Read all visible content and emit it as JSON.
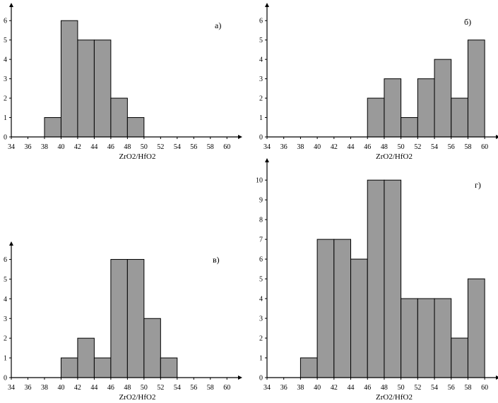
{
  "chart_data": [
    {
      "type": "bar",
      "panel_label": "а)",
      "xlabel": "ZrO2/HfO2",
      "ylabel": "",
      "bin_edges": [
        38,
        40,
        42,
        44,
        46,
        48,
        50
      ],
      "values": [
        1,
        6,
        5,
        5,
        2,
        1
      ],
      "xticks": [
        34,
        36,
        38,
        40,
        42,
        44,
        46,
        48,
        50,
        52,
        54,
        56,
        58,
        60
      ],
      "yticks": [
        0,
        1,
        2,
        3,
        4,
        5,
        6
      ],
      "xlim": [
        34,
        61
      ],
      "ylim": [
        0,
        6.7
      ],
      "grid": false
    },
    {
      "type": "bar",
      "panel_label": "б)",
      "xlabel": "ZrO2/HfO2",
      "ylabel": "",
      "bin_edges": [
        46,
        48,
        50,
        52,
        54,
        56,
        58,
        60
      ],
      "values": [
        2,
        3,
        1,
        3,
        4,
        2,
        5
      ],
      "xticks": [
        34,
        36,
        38,
        40,
        42,
        44,
        46,
        48,
        50,
        52,
        54,
        56,
        58,
        60
      ],
      "yticks": [
        0,
        1,
        2,
        3,
        4,
        5,
        6
      ],
      "xlim": [
        34,
        61
      ],
      "ylim": [
        0,
        6.7
      ],
      "grid": false
    },
    {
      "type": "bar",
      "panel_label": "в)",
      "xlabel": "ZrO2/HfO2",
      "ylabel": "",
      "bin_edges": [
        40,
        42,
        44,
        46,
        48,
        50,
        52,
        54
      ],
      "values": [
        1,
        2,
        1,
        6,
        6,
        3,
        1
      ],
      "xticks": [
        34,
        36,
        38,
        40,
        42,
        44,
        46,
        48,
        50,
        52,
        54,
        56,
        58,
        60
      ],
      "yticks": [
        0,
        1,
        2,
        3,
        4,
        5,
        6
      ],
      "xlim": [
        34,
        61
      ],
      "ylim": [
        0,
        6.7
      ],
      "grid": false
    },
    {
      "type": "bar",
      "panel_label": "г)",
      "xlabel": "ZrO2/HfO2",
      "ylabel": "",
      "bin_edges": [
        38,
        40,
        42,
        44,
        46,
        48,
        50,
        52,
        54,
        56,
        58,
        60
      ],
      "values": [
        1,
        7,
        7,
        6,
        10,
        10,
        4,
        4,
        4,
        2,
        5
      ],
      "xticks": [
        34,
        36,
        38,
        40,
        42,
        44,
        46,
        48,
        50,
        52,
        54,
        56,
        58,
        60
      ],
      "yticks": [
        0,
        1,
        2,
        3,
        4,
        5,
        6,
        7,
        8,
        9,
        10
      ],
      "xlim": [
        34,
        61
      ],
      "ylim": [
        0,
        10.9
      ],
      "grid": false
    }
  ]
}
